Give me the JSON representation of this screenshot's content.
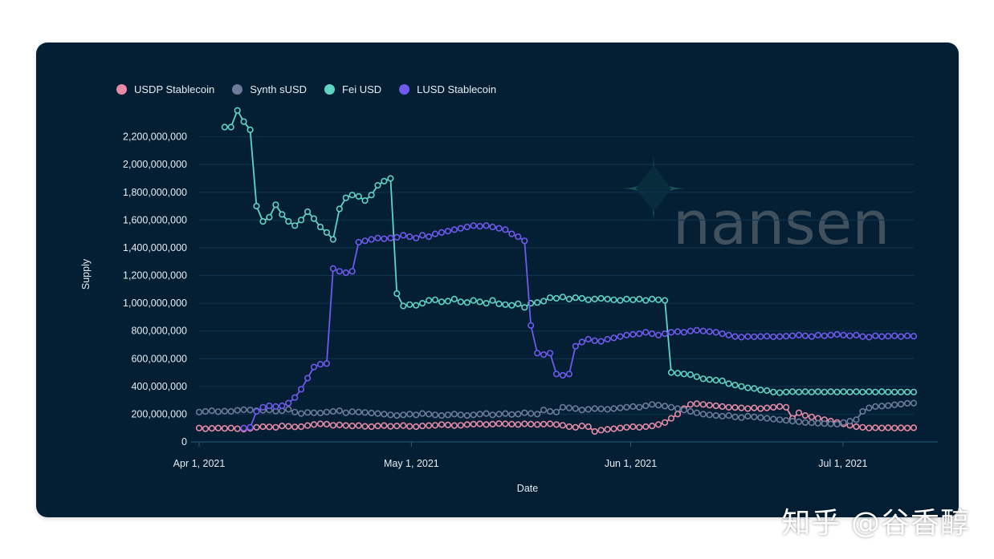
{
  "chart_data": {
    "type": "line",
    "xlabel": "Date",
    "ylabel": "Supply",
    "ylim": [
      0,
      2400000000
    ],
    "yticks": [
      "0",
      "200,000,000",
      "400,000,000",
      "600,000,000",
      "800,000,000",
      "1,000,000,000",
      "1,200,000,000",
      "1,400,000,000",
      "1,600,000,000",
      "1,800,000,000",
      "2,000,000,000",
      "2,200,000,000"
    ],
    "xticks": [
      "Apr 1, 2021",
      "May 1, 2021",
      "Jun 1, 2021",
      "Jul 1, 2021"
    ],
    "x_start": "Apr 1, 2021",
    "x_end": "Jul 11, 2021",
    "legend_position": "top-left",
    "grid": true,
    "series": [
      {
        "name": "USDP Stablecoin",
        "color": "#e88aa6",
        "values": [
          100000000,
          95000000,
          98000000,
          100000000,
          97000000,
          100000000,
          95000000,
          92000000,
          98000000,
          105000000,
          110000000,
          108000000,
          105000000,
          115000000,
          112000000,
          108000000,
          110000000,
          118000000,
          125000000,
          130000000,
          128000000,
          120000000,
          122000000,
          118000000,
          115000000,
          118000000,
          112000000,
          110000000,
          115000000,
          118000000,
          112000000,
          115000000,
          118000000,
          112000000,
          110000000,
          115000000,
          118000000,
          120000000,
          125000000,
          122000000,
          118000000,
          120000000,
          125000000,
          128000000,
          130000000,
          125000000,
          128000000,
          132000000,
          130000000,
          128000000,
          125000000,
          130000000,
          128000000,
          125000000,
          128000000,
          130000000,
          125000000,
          120000000,
          110000000,
          105000000,
          115000000,
          110000000,
          75000000,
          85000000,
          90000000,
          95000000,
          100000000,
          105000000,
          110000000,
          105000000,
          110000000,
          115000000,
          125000000,
          140000000,
          170000000,
          200000000,
          240000000,
          270000000,
          275000000,
          270000000,
          265000000,
          260000000,
          255000000,
          250000000,
          248000000,
          245000000,
          240000000,
          245000000,
          240000000,
          245000000,
          250000000,
          255000000,
          250000000,
          170000000,
          210000000,
          190000000,
          180000000,
          170000000,
          160000000,
          150000000,
          140000000,
          130000000,
          120000000,
          110000000,
          105000000,
          100000000,
          102000000,
          100000000,
          102000000,
          100000000,
          101000000,
          100000000,
          102000000
        ]
      },
      {
        "name": "Synth sUSD",
        "color": "#6c7b9a",
        "values": [
          215000000,
          220000000,
          225000000,
          218000000,
          222000000,
          220000000,
          228000000,
          232000000,
          230000000,
          225000000,
          228000000,
          230000000,
          222000000,
          225000000,
          235000000,
          215000000,
          205000000,
          212000000,
          210000000,
          208000000,
          215000000,
          220000000,
          225000000,
          210000000,
          218000000,
          215000000,
          212000000,
          208000000,
          205000000,
          200000000,
          195000000,
          190000000,
          195000000,
          200000000,
          195000000,
          205000000,
          200000000,
          195000000,
          190000000,
          195000000,
          200000000,
          195000000,
          190000000,
          195000000,
          200000000,
          205000000,
          195000000,
          200000000,
          205000000,
          198000000,
          200000000,
          210000000,
          205000000,
          200000000,
          230000000,
          220000000,
          215000000,
          250000000,
          245000000,
          240000000,
          230000000,
          235000000,
          240000000,
          238000000,
          235000000,
          240000000,
          245000000,
          250000000,
          255000000,
          250000000,
          260000000,
          270000000,
          265000000,
          258000000,
          250000000,
          240000000,
          230000000,
          220000000,
          210000000,
          200000000,
          195000000,
          190000000,
          185000000,
          190000000,
          180000000,
          175000000,
          185000000,
          180000000,
          175000000,
          170000000,
          165000000,
          160000000,
          155000000,
          150000000,
          145000000,
          140000000,
          138000000,
          135000000,
          132000000,
          130000000,
          128000000,
          140000000,
          150000000,
          160000000,
          220000000,
          245000000,
          255000000,
          258000000,
          262000000,
          268000000,
          272000000,
          278000000,
          280000000
        ]
      },
      {
        "name": "Fei USD",
        "color": "#5ed4c2",
        "values": [
          null,
          null,
          null,
          null,
          2270000000,
          2270000000,
          2390000000,
          2310000000,
          2250000000,
          1700000000,
          1590000000,
          1620000000,
          1710000000,
          1640000000,
          1590000000,
          1560000000,
          1600000000,
          1660000000,
          1610000000,
          1550000000,
          1510000000,
          1460000000,
          1680000000,
          1760000000,
          1780000000,
          1770000000,
          1740000000,
          1780000000,
          1850000000,
          1880000000,
          1900000000,
          1070000000,
          980000000,
          990000000,
          985000000,
          1000000000,
          1020000000,
          1025000000,
          1010000000,
          1015000000,
          1030000000,
          1010000000,
          1005000000,
          1020000000,
          1010000000,
          1000000000,
          1020000000,
          995000000,
          990000000,
          985000000,
          995000000,
          970000000,
          1000000000,
          1005000000,
          1015000000,
          1040000000,
          1035000000,
          1045000000,
          1030000000,
          1040000000,
          1035000000,
          1025000000,
          1030000000,
          1035000000,
          1030000000,
          1025000000,
          1020000000,
          1030000000,
          1025000000,
          1030000000,
          1020000000,
          1030000000,
          1025000000,
          1020000000,
          500000000,
          495000000,
          490000000,
          485000000,
          470000000,
          455000000,
          450000000,
          445000000,
          440000000,
          420000000,
          410000000,
          400000000,
          390000000,
          385000000,
          375000000,
          370000000,
          360000000,
          355000000,
          360000000,
          362000000,
          360000000,
          362000000,
          360000000,
          362000000,
          360000000,
          362000000,
          360000000,
          362000000,
          360000000,
          362000000,
          360000000,
          362000000,
          360000000,
          362000000,
          360000000,
          360000000,
          360000000,
          360000000,
          360000000
        ]
      },
      {
        "name": "LUSD Stablecoin",
        "color": "#7059ee",
        "values": [
          null,
          null,
          null,
          null,
          null,
          null,
          null,
          100000000,
          105000000,
          220000000,
          250000000,
          260000000,
          255000000,
          260000000,
          280000000,
          320000000,
          380000000,
          460000000,
          540000000,
          560000000,
          565000000,
          1250000000,
          1230000000,
          1220000000,
          1230000000,
          1440000000,
          1450000000,
          1460000000,
          1470000000,
          1465000000,
          1470000000,
          1475000000,
          1490000000,
          1480000000,
          1470000000,
          1490000000,
          1480000000,
          1500000000,
          1510000000,
          1520000000,
          1530000000,
          1540000000,
          1550000000,
          1560000000,
          1555000000,
          1560000000,
          1550000000,
          1540000000,
          1530000000,
          1500000000,
          1480000000,
          1450000000,
          840000000,
          640000000,
          630000000,
          640000000,
          490000000,
          480000000,
          490000000,
          690000000,
          720000000,
          740000000,
          730000000,
          725000000,
          740000000,
          750000000,
          760000000,
          770000000,
          775000000,
          780000000,
          790000000,
          780000000,
          770000000,
          780000000,
          790000000,
          795000000,
          790000000,
          800000000,
          805000000,
          800000000,
          795000000,
          790000000,
          780000000,
          770000000,
          760000000,
          755000000,
          760000000,
          758000000,
          760000000,
          762000000,
          758000000,
          760000000,
          762000000,
          765000000,
          770000000,
          765000000,
          760000000,
          770000000,
          765000000,
          770000000,
          775000000,
          770000000,
          765000000,
          770000000,
          760000000,
          755000000,
          765000000,
          760000000,
          762000000,
          765000000,
          760000000,
          765000000,
          762000000
        ]
      }
    ]
  },
  "watermarks": {
    "brand": "nansen",
    "caption": "知乎 @谷香醇"
  }
}
